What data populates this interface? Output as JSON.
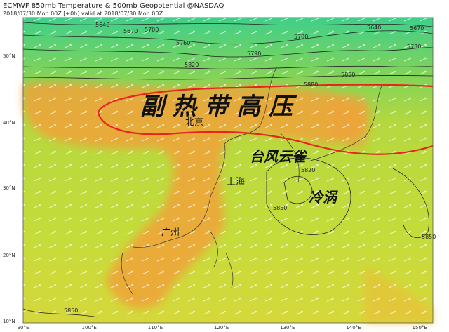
{
  "header": {
    "title": "ECMWF 850mb Temperature & 500mb Geopotential @NASDAQ",
    "subtitle": "2018/07/30 Mon 00Z [+0h] valid at 2018/07/30 Mon 00Z"
  },
  "lat_labels": [
    "50°N",
    "40°N",
    "30°N",
    "20°N",
    "10°N"
  ],
  "lon_labels": [
    "90°E",
    "100°E",
    "110°E",
    "120°E",
    "130°E",
    "140°E",
    "150°E"
  ],
  "contour_labels": [
    "5640",
    "5670",
    "5700",
    "5760",
    "5790",
    "5820",
    "5700",
    "5640",
    "5670",
    "5730",
    "5850",
    "5880",
    "5820",
    "5850",
    "5850",
    "5850"
  ],
  "annotations": {
    "subtropical_high": "副 热 带 高 压",
    "beijing": "北京",
    "typhoon": "台风云雀",
    "shanghai": "上海",
    "cold_vortex": "冷涡",
    "guangzhou": "广州"
  }
}
